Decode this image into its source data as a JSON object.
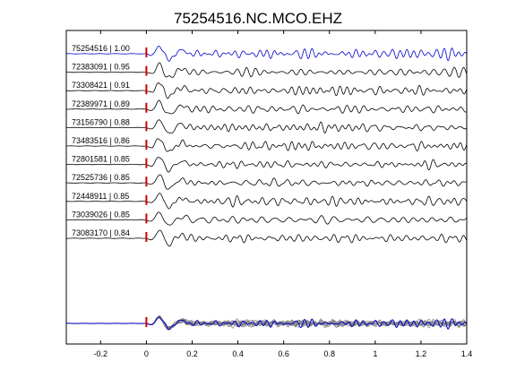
{
  "chart_data": {
    "type": "line",
    "title": "75254516.NC.MCO.EHZ",
    "xlabel": "",
    "ylabel": "",
    "xlim": [
      -0.35,
      1.4
    ],
    "xticks": [
      -0.2,
      0,
      0.2,
      0.4,
      0.6,
      0.8,
      1,
      1.2,
      1.4
    ],
    "xtick_labels": [
      "-0.2",
      "0",
      "0.2",
      "0.4",
      "0.6",
      "0.8",
      "1",
      "1.2",
      "1.4"
    ],
    "pick_time": 0,
    "grid": false,
    "series": [
      {
        "name": "75254516 | 1.00",
        "color": "#0000cc",
        "seed": 1
      },
      {
        "name": "72383091 | 0.95",
        "color": "#000000",
        "seed": 2
      },
      {
        "name": "73308421 | 0.91",
        "color": "#000000",
        "seed": 3
      },
      {
        "name": "72389971 | 0.89",
        "color": "#000000",
        "seed": 4
      },
      {
        "name": "73156790 | 0.88",
        "color": "#000000",
        "seed": 5
      },
      {
        "name": "73483516 | 0.86",
        "color": "#000000",
        "seed": 6
      },
      {
        "name": "72801581 | 0.85",
        "color": "#000000",
        "seed": 7
      },
      {
        "name": "72525736 | 0.85",
        "color": "#000000",
        "seed": 8
      },
      {
        "name": "72448911 | 0.85",
        "color": "#000000",
        "seed": 9
      },
      {
        "name": "73039026 | 0.85",
        "color": "#000000",
        "seed": 10
      },
      {
        "name": "73083170 | 0.84",
        "color": "#000000",
        "seed": 11
      }
    ],
    "stack": {
      "overlay_color": "#808080",
      "reference_color": "#0000cc"
    },
    "pick_color": "#cc0000"
  }
}
